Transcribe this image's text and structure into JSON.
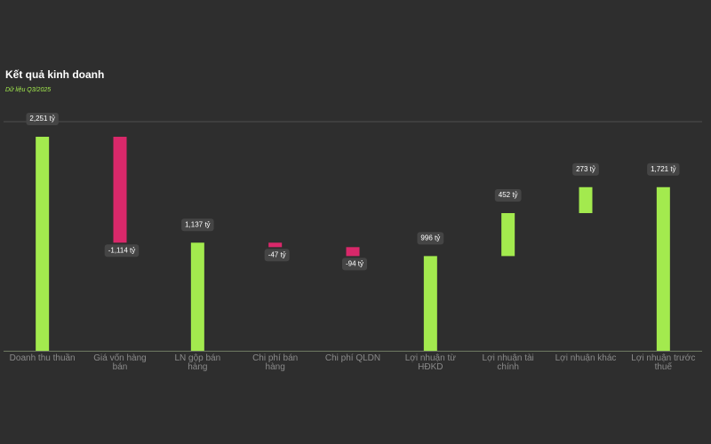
{
  "chart_data": {
    "type": "waterfall",
    "title": "Kết quả kinh doanh",
    "subtitle": "Dữ liệu Q3/2025",
    "categories": [
      "Doanh thu thuần",
      "Giá vốn hàng bán",
      "LN gộp bán hàng",
      "Chi phí bán hàng",
      "Chi phí QLDN",
      "Lợi nhuận từ HĐKD",
      "Lợi nhuận tài chính",
      "Lợi nhuận khác",
      "Lợi nhuận trước thuế"
    ],
    "values": [
      2251,
      -1114,
      1137,
      -47,
      -94,
      996,
      452,
      273,
      1721
    ],
    "value_labels": [
      "2,251 tỷ",
      "-1,114 tỷ",
      "1,137 tỷ",
      "-47 tỷ",
      "-94 tỷ",
      "996 tỷ",
      "452 tỷ",
      "273 tỷ",
      "1,721 tỷ"
    ],
    "bar_kinds": [
      "total",
      "delta",
      "total",
      "delta",
      "delta",
      "total",
      "delta",
      "delta",
      "total"
    ],
    "colors": {
      "positive": "#a3ea4e",
      "negative": "#d9286a"
    },
    "ylim": [
      0,
      2410
    ]
  }
}
